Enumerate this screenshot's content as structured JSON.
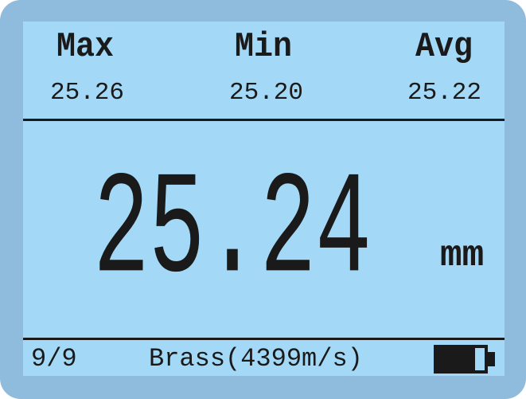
{
  "stats": {
    "max_label": "Max",
    "max_value": "25.26",
    "min_label": "Min",
    "min_value": "25.20",
    "avg_label": "Avg",
    "avg_value": "25.22"
  },
  "reading": {
    "value": "25.24",
    "unit": "mm"
  },
  "footer": {
    "count": "9/9",
    "material": "Brass(4399m/s)",
    "battery_icon": "battery-icon",
    "battery_level": 0.75
  },
  "colors": {
    "screen": "#a3d9f6",
    "bezel": "#8fbcdc",
    "ink": "#1a1a1a"
  }
}
